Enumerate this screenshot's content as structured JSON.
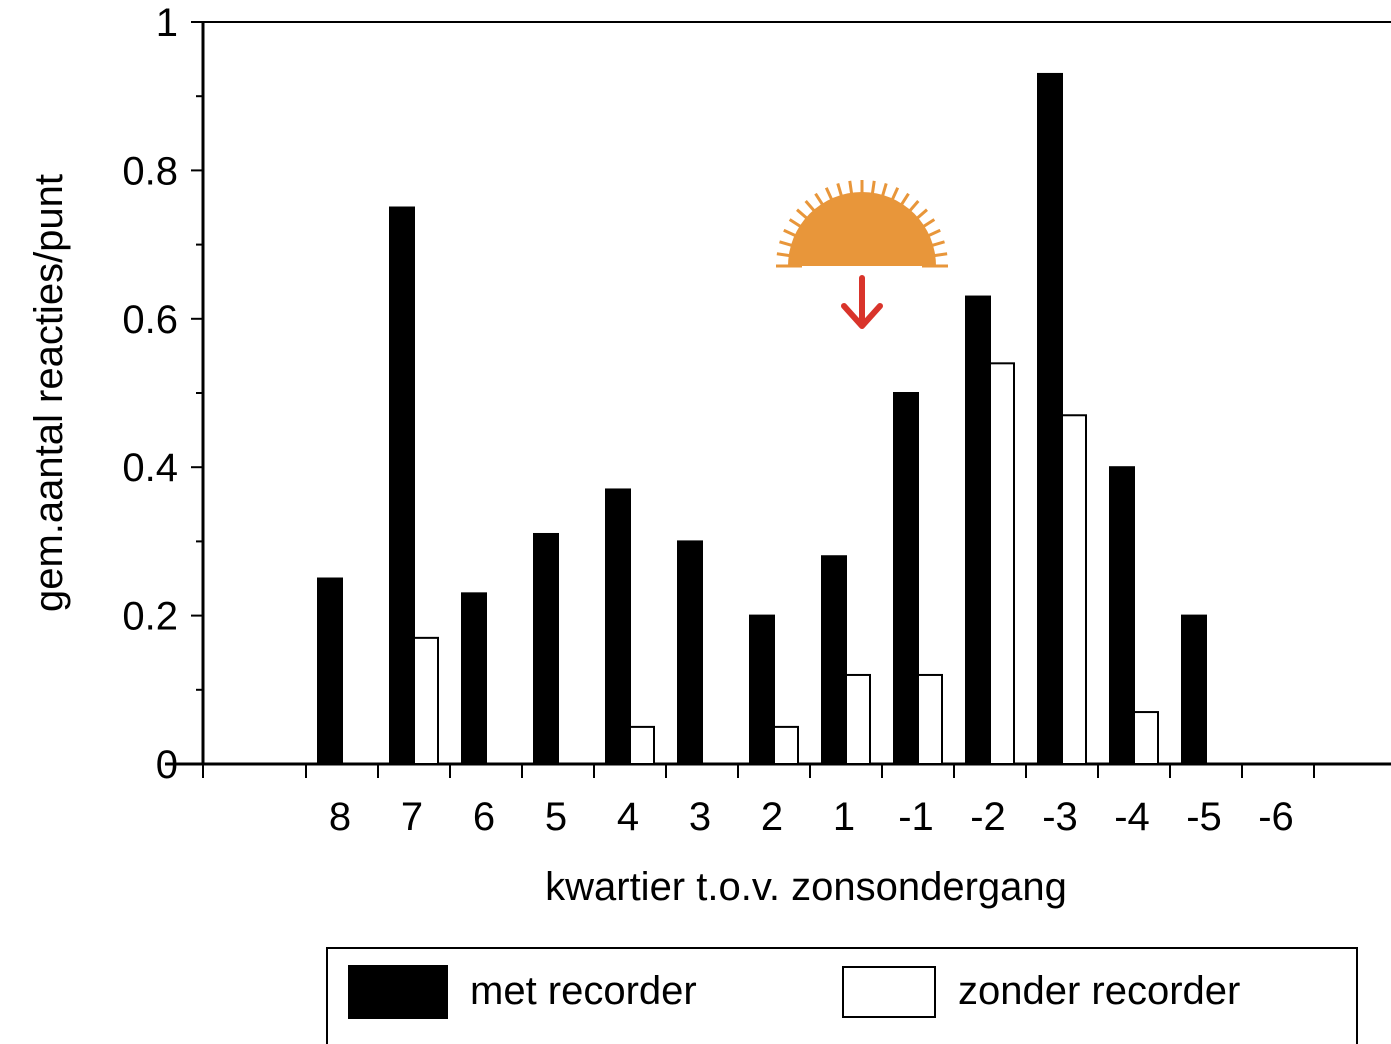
{
  "chart_data": {
    "type": "bar",
    "categories": [
      "8",
      "7",
      "6",
      "5",
      "4",
      "3",
      "2",
      "1",
      "-1",
      "-2",
      "-3",
      "-4",
      "-5",
      "-6"
    ],
    "series": [
      {
        "name": "met recorder",
        "color": "#000000",
        "values": [
          0.25,
          0.75,
          0.23,
          0.31,
          0.37,
          0.3,
          0.2,
          0.28,
          0.5,
          0.63,
          0.93,
          0.4,
          0.2,
          0
        ]
      },
      {
        "name": "zonder recorder",
        "color": "#ffffff",
        "values": [
          0,
          0.17,
          0,
          0,
          0.05,
          0,
          0.05,
          0.12,
          0.12,
          0.54,
          0.47,
          0.07,
          0,
          0
        ]
      }
    ],
    "xlabel": "kwartier t.o.v. zonsondergang",
    "ylabel": "gem.aantal reacties/punt",
    "ylim": [
      0,
      1
    ],
    "yticks": [
      "0",
      "0.2",
      "0.4",
      "0.6",
      "0.8",
      "1"
    ],
    "ytick_values": [
      0,
      0.2,
      0.4,
      0.6,
      0.8,
      1
    ],
    "grid": false,
    "legend_position": "bottom",
    "annotation": {
      "icon": "sunset-icon",
      "sun_color": "#E8963A",
      "arrow_color": "#D9342B",
      "category_index": 7
    }
  }
}
